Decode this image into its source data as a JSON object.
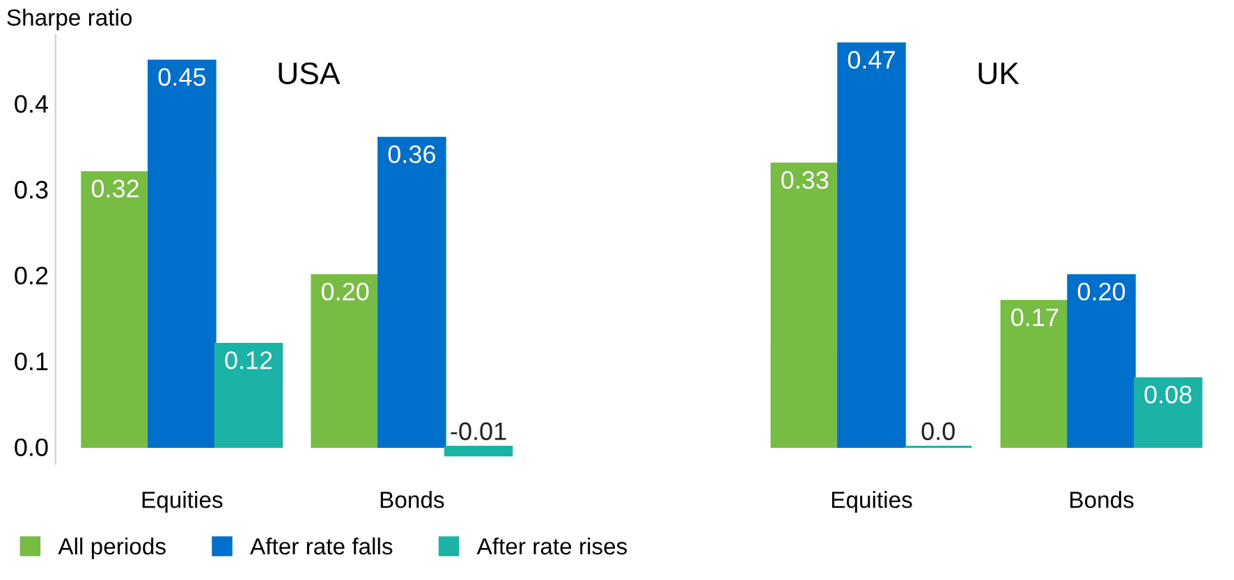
{
  "chart_data": {
    "type": "bar",
    "ylabel": "Sharpe ratio",
    "categories": [
      "Equities",
      "Bonds",
      null,
      "Equities",
      "Bonds"
    ],
    "series": [
      {
        "name": "All periods",
        "color": "#77bc43",
        "values": [
          0.32,
          0.2,
          null,
          0.33,
          0.17
        ],
        "value_labels": [
          "0.32",
          "0.20",
          null,
          "0.33",
          "0.17"
        ]
      },
      {
        "name": "After rate falls",
        "color": "#0070cc",
        "values": [
          0.45,
          0.36,
          null,
          0.47,
          0.2
        ],
        "value_labels": [
          "0.45",
          "0.36",
          null,
          "0.47",
          "0.20"
        ]
      },
      {
        "name": "After rate rises",
        "color": "#1ab3a6",
        "values": [
          0.12,
          -0.01,
          null,
          0.0,
          0.08
        ],
        "value_labels": [
          "0.12",
          "-0.01",
          null,
          "0.0",
          "0.08"
        ]
      }
    ],
    "annotations": [
      "USA",
      "UK"
    ],
    "ylim": [
      -0.02,
      0.48
    ],
    "yticks": [
      {
        "value": 0,
        "label": "0.0"
      },
      0.1,
      0.2,
      0.3,
      0.4
    ],
    "grid": false,
    "legend": "bottom"
  }
}
